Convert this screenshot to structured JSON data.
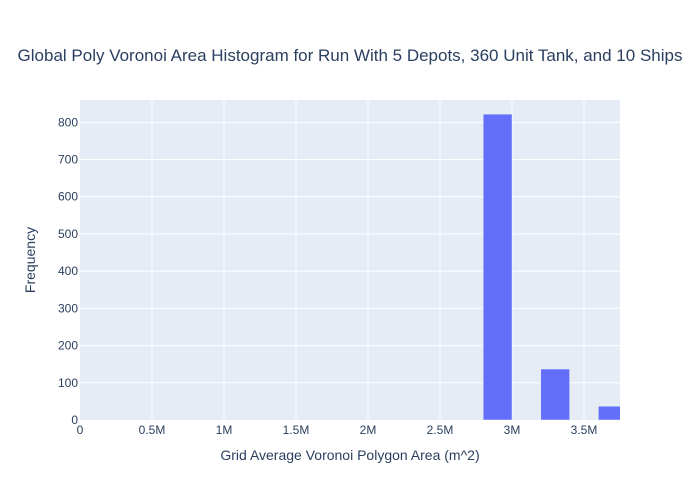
{
  "chart_data": {
    "type": "bar",
    "title": "Global Poly Voronoi Area Histogram for Run With 5 Depots, 360 Unit Tank, and 10 Ships",
    "xlabel": "Grid Average Voronoi Polygon Area (m^2)",
    "ylabel": "Frequency",
    "xlim": [
      0,
      3750000
    ],
    "ylim": [
      0,
      860
    ],
    "x_ticks": [
      0,
      500000,
      1000000,
      1500000,
      2000000,
      2500000,
      3000000,
      3500000
    ],
    "x_tick_labels": [
      "0",
      "0.5M",
      "1M",
      "1.5M",
      "2M",
      "2.5M",
      "3M",
      "3.5M"
    ],
    "y_ticks": [
      0,
      100,
      200,
      300,
      400,
      500,
      600,
      700,
      800
    ],
    "y_tick_labels": [
      "0",
      "100",
      "200",
      "300",
      "400",
      "500",
      "600",
      "700",
      "800"
    ],
    "bars": [
      {
        "x0": 2800000,
        "x1": 3000000,
        "value": 822
      },
      {
        "x0": 3200000,
        "x1": 3400000,
        "value": 137
      },
      {
        "x0": 3600000,
        "x1": 3800000,
        "value": 37
      }
    ],
    "bar_color": "#636efa",
    "plot_bg": "#e5ecf6",
    "grid_color": "#ffffff",
    "grid": true
  }
}
